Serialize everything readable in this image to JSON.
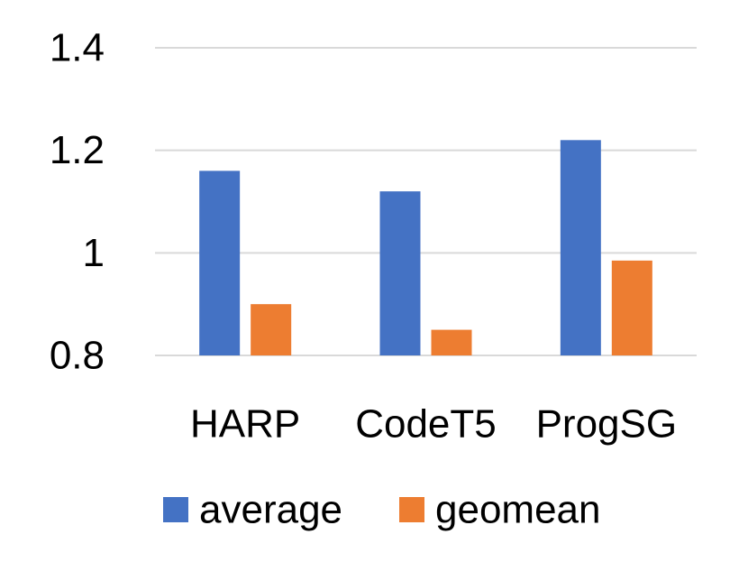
{
  "chart_data": {
    "type": "bar",
    "title": "",
    "xlabel": "",
    "ylabel": "",
    "categories": [
      "HARP",
      "CodeT5",
      "ProgSG"
    ],
    "series": [
      {
        "name": "average",
        "values": [
          1.16,
          1.12,
          1.22
        ],
        "color": "#4472C4"
      },
      {
        "name": "geomean",
        "values": [
          0.9,
          0.85,
          0.985
        ],
        "color": "#ED7D31"
      }
    ],
    "ylim": [
      0.8,
      1.4
    ],
    "yticks": [
      0.8,
      1,
      1.2,
      1.4
    ],
    "ytick_labels": [
      "0.8",
      "1",
      "1.2",
      "1.4"
    ],
    "grid": true,
    "grid_color": "#D9D9D9",
    "legend": "bottom"
  }
}
